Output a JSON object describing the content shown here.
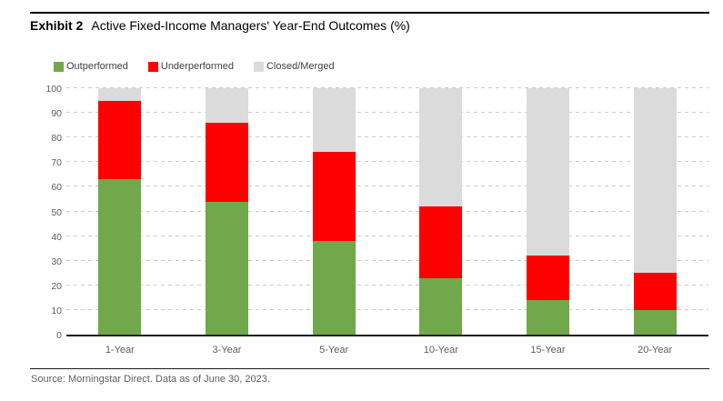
{
  "header": {
    "exhibit_label": "Exhibit 2",
    "title": "Active Fixed-Income Managers' Year-End Outcomes (%)"
  },
  "colors": {
    "outperformed": "#70A84B",
    "underperformed": "#FF0000",
    "closed_merged": "#DBDBDB",
    "gridline": "#CDCDCD",
    "axis_line": "#1A1A1A",
    "tick_text": "#5E5E5E"
  },
  "chart_data": {
    "type": "bar",
    "stacked": true,
    "title": "Active Fixed-Income Managers' Year-End Outcomes (%)",
    "categories": [
      "1-Year",
      "3-Year",
      "5-Year",
      "10-Year",
      "15-Year",
      "20-Year"
    ],
    "series": [
      {
        "name": "Outperformed",
        "color": "#70A84B",
        "values": [
          63,
          54,
          38,
          23,
          14,
          10
        ]
      },
      {
        "name": "Underperformed",
        "color": "#FF0000",
        "values": [
          32,
          32,
          36,
          29,
          18,
          15
        ]
      },
      {
        "name": "Closed/Merged",
        "color": "#DBDBDB",
        "values": [
          5,
          14,
          26,
          48,
          68,
          75
        ]
      }
    ],
    "xlabel": "",
    "ylabel": "",
    "ylim": [
      0,
      100
    ],
    "yticks": [
      0,
      10,
      20,
      30,
      40,
      50,
      60,
      70,
      80,
      90,
      100
    ],
    "grid": "horizontal-dashed",
    "legend_position": "top-left"
  },
  "footer": {
    "source": "Source: Morningstar Direct. Data as of June 30, 2023."
  }
}
